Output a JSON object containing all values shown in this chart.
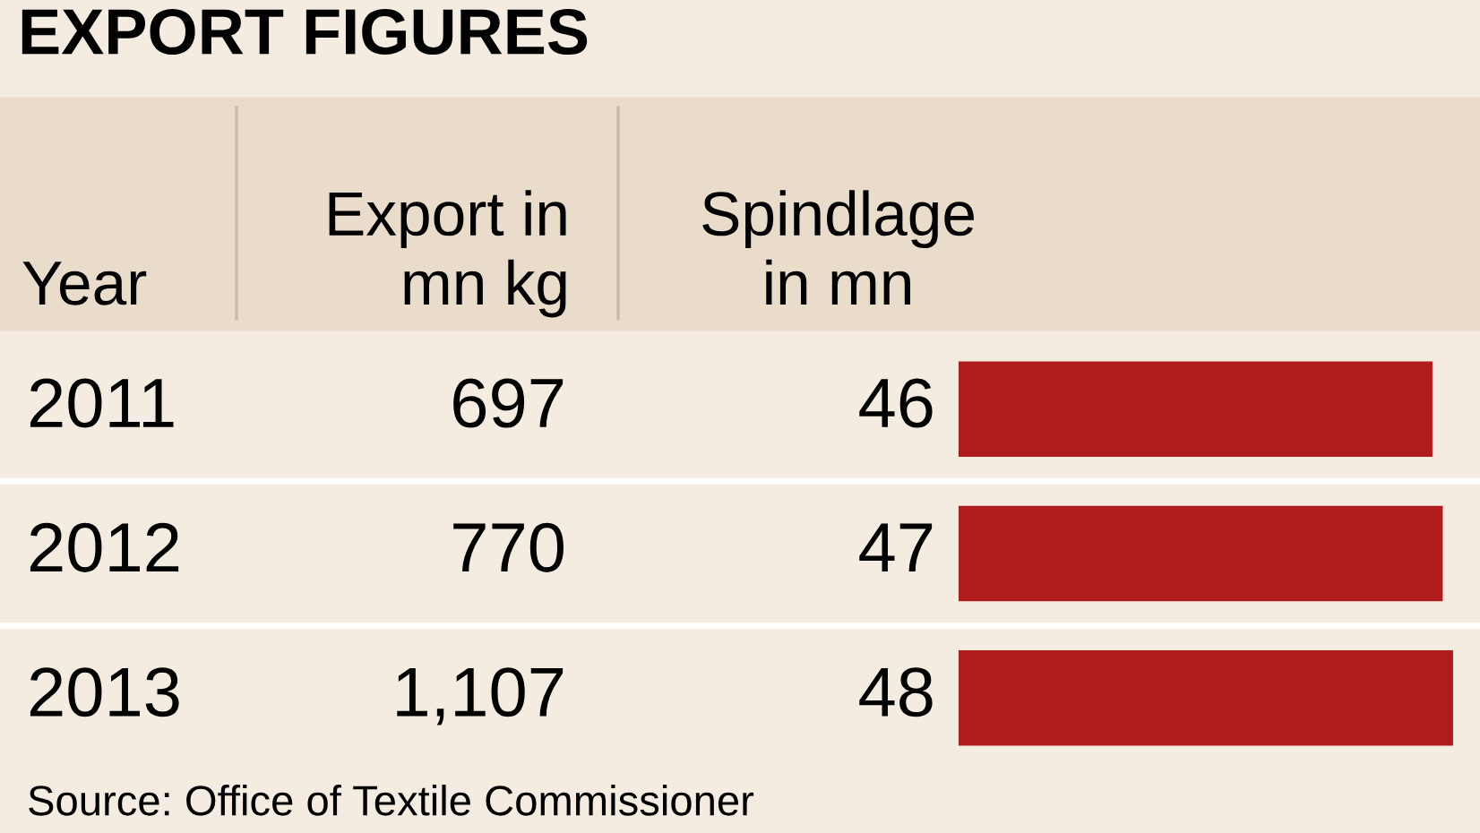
{
  "chart_data": {
    "type": "bar",
    "orientation": "horizontal",
    "title": "EXPORT FIGURES",
    "categories": [
      "2011",
      "2012",
      "2013"
    ],
    "series": [
      {
        "name": "Spindlage in mn",
        "color": "#b01c1c",
        "values": [
          46,
          47,
          48
        ]
      }
    ],
    "data_labels": true,
    "annotations": [
      "Year",
      "Export in\nmn kg",
      "697",
      "770",
      "1,107",
      "Source: Office of Textile Commissioner"
    ]
  }
}
